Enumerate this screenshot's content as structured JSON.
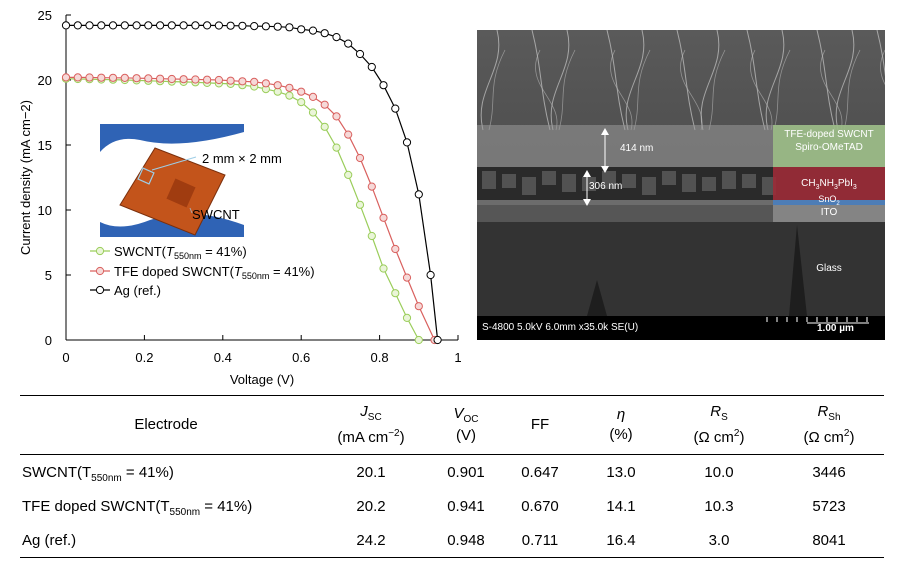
{
  "chart_data": {
    "type": "line",
    "xlabel": "Voltage (V)",
    "ylabel": "Current density (mA cm−2)",
    "xlim": [
      0,
      1
    ],
    "ylim": [
      0,
      25
    ],
    "xticks": [
      "0",
      "0.2",
      "0.4",
      "0.6",
      "0.8",
      "1"
    ],
    "yticks": [
      "0",
      "5",
      "10",
      "15",
      "20",
      "25"
    ],
    "grid": false,
    "legend_position": "bottom-left",
    "series": [
      {
        "name": "SWCNT(T550nm = 41%)",
        "color": "#9acd5a",
        "fill": "#eaf5d8",
        "x": [
          0,
          0.03,
          0.06,
          0.09,
          0.12,
          0.15,
          0.18,
          0.21,
          0.24,
          0.27,
          0.3,
          0.33,
          0.36,
          0.39,
          0.42,
          0.45,
          0.48,
          0.51,
          0.54,
          0.57,
          0.6,
          0.63,
          0.66,
          0.69,
          0.72,
          0.75,
          0.78,
          0.81,
          0.84,
          0.87,
          0.9
        ],
        "y": [
          20.1,
          20.08,
          20.06,
          20.04,
          20.02,
          20.0,
          19.97,
          19.94,
          19.91,
          19.88,
          19.85,
          19.82,
          19.78,
          19.74,
          19.7,
          19.6,
          19.5,
          19.3,
          19.1,
          18.8,
          18.3,
          17.5,
          16.4,
          14.8,
          12.7,
          10.4,
          8.0,
          5.5,
          3.6,
          1.7,
          0.0
        ]
      },
      {
        "name": "TFE doped SWCNT(T550nm = 41%)",
        "color": "#d9605e",
        "fill": "#f6d9d8",
        "x": [
          0,
          0.03,
          0.06,
          0.09,
          0.12,
          0.15,
          0.18,
          0.21,
          0.24,
          0.27,
          0.3,
          0.33,
          0.36,
          0.39,
          0.42,
          0.45,
          0.48,
          0.51,
          0.54,
          0.57,
          0.6,
          0.63,
          0.66,
          0.69,
          0.72,
          0.75,
          0.78,
          0.81,
          0.84,
          0.87,
          0.9,
          0.94
        ],
        "y": [
          20.2,
          20.2,
          20.19,
          20.18,
          20.17,
          20.16,
          20.14,
          20.12,
          20.1,
          20.08,
          20.06,
          20.04,
          20.02,
          20.0,
          19.95,
          19.9,
          19.85,
          19.75,
          19.6,
          19.4,
          19.1,
          18.7,
          18.1,
          17.2,
          15.8,
          14.0,
          11.8,
          9.4,
          7.0,
          4.8,
          2.6,
          0.0
        ]
      },
      {
        "name": "Ag (ref.)",
        "color": "#000000",
        "fill": "#ffffff",
        "x": [
          0,
          0.03,
          0.06,
          0.09,
          0.12,
          0.15,
          0.18,
          0.21,
          0.24,
          0.27,
          0.3,
          0.33,
          0.36,
          0.39,
          0.42,
          0.45,
          0.48,
          0.51,
          0.54,
          0.57,
          0.6,
          0.63,
          0.66,
          0.69,
          0.72,
          0.75,
          0.78,
          0.81,
          0.84,
          0.87,
          0.9,
          0.93,
          0.948
        ],
        "y": [
          24.2,
          24.2,
          24.2,
          24.2,
          24.2,
          24.2,
          24.2,
          24.2,
          24.2,
          24.2,
          24.2,
          24.2,
          24.2,
          24.19,
          24.18,
          24.17,
          24.15,
          24.13,
          24.1,
          24.05,
          23.9,
          23.8,
          23.6,
          23.3,
          22.8,
          22.0,
          21.0,
          19.6,
          17.8,
          15.2,
          11.2,
          5.0,
          0.0
        ]
      }
    ],
    "inset": {
      "label_size": "2 mm × 2 mm",
      "label_material": "SWCNT"
    }
  },
  "sem": {
    "label_thickness_top": "414 nm",
    "label_thickness_bottom": "306 nm",
    "label_layer_1a": "TFE-doped SWCNT",
    "label_layer_1b": "Spiro-OMeTAD",
    "label_layer_2": "CH3NH3PbI3",
    "label_layer_3": "SnO2",
    "label_layer_4": "ITO",
    "label_layer_5": "Glass",
    "info_bar": "S-4800 5.0kV 6.0mm x35.0k SE(U)",
    "scale_bar": "1.00 µm"
  },
  "table": {
    "headers": [
      {
        "label": "Electrode",
        "unit": ""
      },
      {
        "label": "JSC",
        "unit": "(mA cm−2)"
      },
      {
        "label": "VOC",
        "unit": "(V)"
      },
      {
        "label": "FF",
        "unit": ""
      },
      {
        "label": "η",
        "unit": "(%)"
      },
      {
        "label": "RS",
        "unit": "(Ω cm2)"
      },
      {
        "label": "RSh",
        "unit": "(Ω cm2)"
      }
    ],
    "rows": [
      [
        "SWCNT(T550nm = 41%)",
        "20.1",
        "0.901",
        "0.647",
        "13.0",
        "10.0",
        "3446"
      ],
      [
        "TFE doped SWCNT(T550nm = 41%)",
        "20.2",
        "0.941",
        "0.670",
        "14.1",
        "10.3",
        "5723"
      ],
      [
        "Ag (ref.)",
        "24.2",
        "0.948",
        "0.711",
        "16.4",
        "3.0",
        "8041"
      ]
    ]
  }
}
